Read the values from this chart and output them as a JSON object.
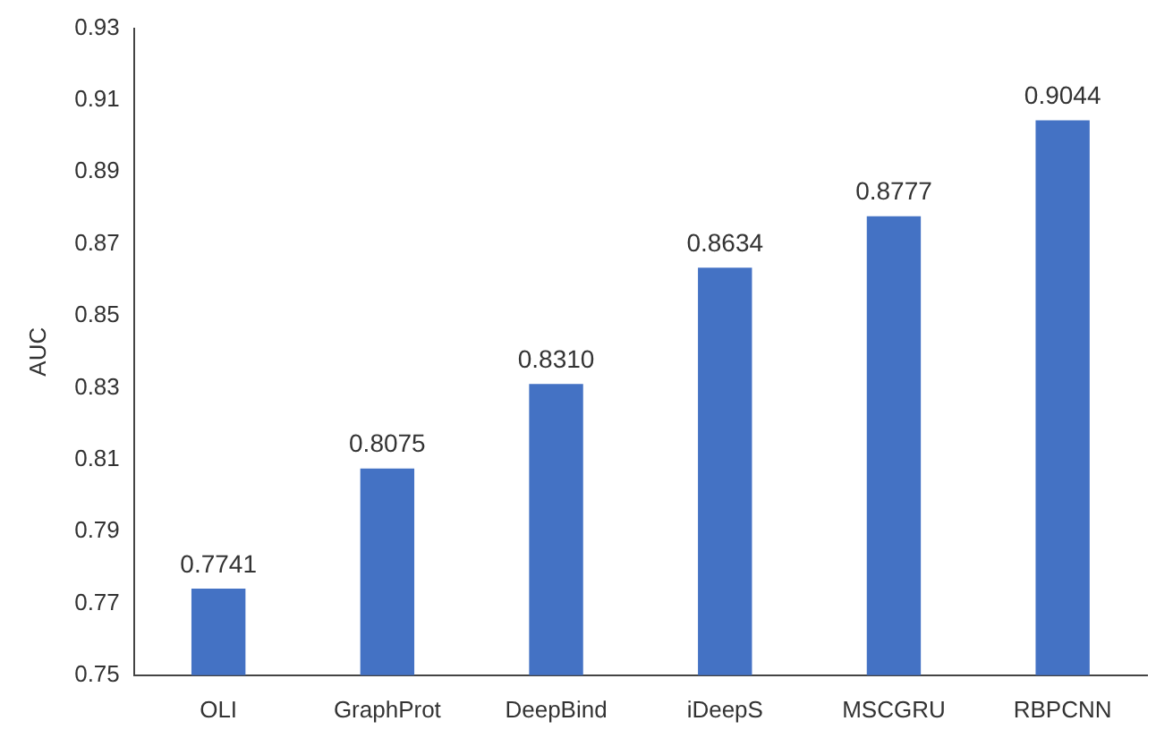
{
  "chart_data": {
    "type": "bar",
    "ylabel": "AUC",
    "categories": [
      "OLI",
      "GraphProt",
      "DeepBind",
      "iDeepS",
      "MSCGRU",
      "RBPCNN"
    ],
    "values": [
      0.7741,
      0.8075,
      0.831,
      0.8634,
      0.8777,
      0.9044
    ],
    "value_labels": [
      "0.7741",
      "0.8075",
      "0.8310",
      "0.8634",
      "0.8777",
      "0.9044"
    ],
    "color": "#4472c4",
    "ylim": [
      0.75,
      0.93
    ],
    "yticks": [
      0.75,
      0.77,
      0.79,
      0.81,
      0.83,
      0.85,
      0.87,
      0.89,
      0.91,
      0.93
    ],
    "grid": false,
    "legend": false
  }
}
